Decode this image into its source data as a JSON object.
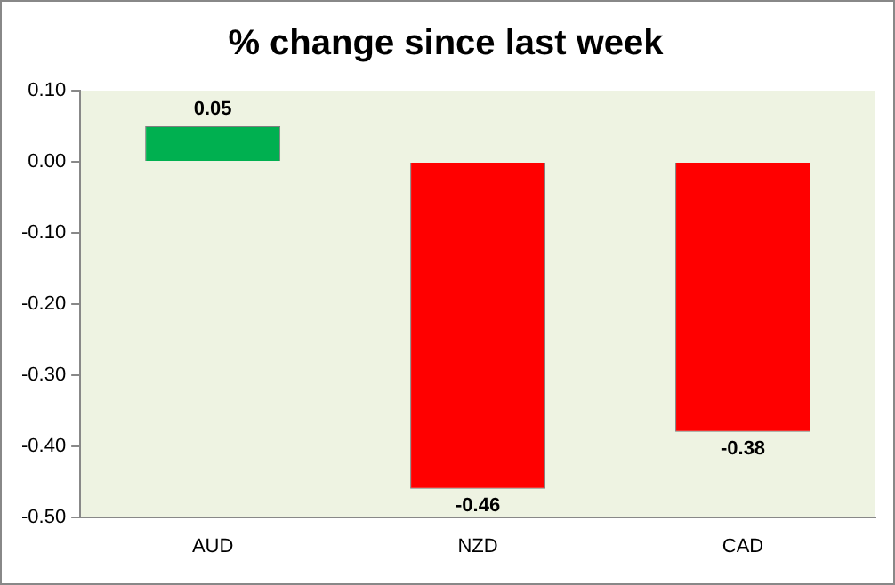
{
  "chart_data": {
    "type": "bar",
    "title": "% change since last week",
    "categories": [
      "AUD",
      "NZD",
      "CAD"
    ],
    "values": [
      0.05,
      -0.46,
      -0.38
    ],
    "colors": [
      "#00b050",
      "#ff0000",
      "#ff0000"
    ],
    "ylim": [
      -0.5,
      0.1
    ],
    "yticks": [
      {
        "value": 0.1,
        "label": "0.10"
      },
      {
        "value": 0,
        "label": "0.00"
      },
      {
        "value": -0.1,
        "label": "-0.10"
      },
      {
        "value": -0.2,
        "label": "-0.20"
      },
      {
        "value": -0.3,
        "label": "-0.30"
      },
      {
        "value": -0.4,
        "label": "-0.40"
      },
      {
        "value": -0.5,
        "label": "-0.50"
      }
    ],
    "grid": false,
    "data_labels": true
  }
}
